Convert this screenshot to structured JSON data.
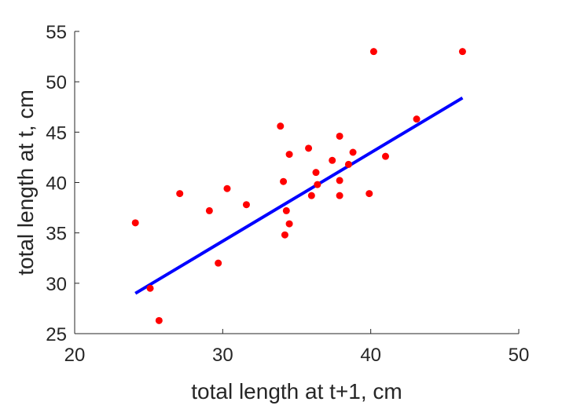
{
  "chart_data": {
    "type": "scatter",
    "title": "",
    "xlabel": "total length at t+1, cm",
    "ylabel": "total length at t, cm",
    "xlim": [
      20,
      50
    ],
    "ylim": [
      25,
      55
    ],
    "xticks": [
      20,
      30,
      40,
      50
    ],
    "yticks": [
      25,
      30,
      35,
      40,
      45,
      50,
      55
    ],
    "grid": false,
    "legend": "none",
    "series": [
      {
        "kind": "points",
        "color": "#ff0000",
        "points": [
          [
            24.1,
            36.0
          ],
          [
            25.1,
            29.5
          ],
          [
            25.7,
            26.3
          ],
          [
            27.1,
            38.9
          ],
          [
            29.1,
            37.2
          ],
          [
            29.7,
            32.0
          ],
          [
            30.3,
            39.4
          ],
          [
            31.6,
            37.8
          ],
          [
            33.9,
            45.6
          ],
          [
            34.1,
            40.1
          ],
          [
            34.2,
            34.8
          ],
          [
            34.3,
            37.2
          ],
          [
            34.5,
            42.8
          ],
          [
            34.5,
            35.9
          ],
          [
            35.8,
            43.4
          ],
          [
            36.0,
            38.7
          ],
          [
            36.3,
            41.0
          ],
          [
            36.4,
            39.8
          ],
          [
            37.4,
            42.2
          ],
          [
            37.9,
            44.6
          ],
          [
            37.9,
            40.2
          ],
          [
            37.9,
            38.7
          ],
          [
            38.5,
            41.8
          ],
          [
            38.8,
            43.0
          ],
          [
            39.9,
            38.9
          ],
          [
            40.2,
            53.0
          ],
          [
            41.0,
            42.6
          ],
          [
            43.1,
            46.3
          ],
          [
            46.2,
            53.0
          ]
        ]
      },
      {
        "kind": "line",
        "color": "#0000ff",
        "x": [
          24.1,
          46.2
        ],
        "y": [
          29.0,
          48.4
        ]
      }
    ]
  }
}
